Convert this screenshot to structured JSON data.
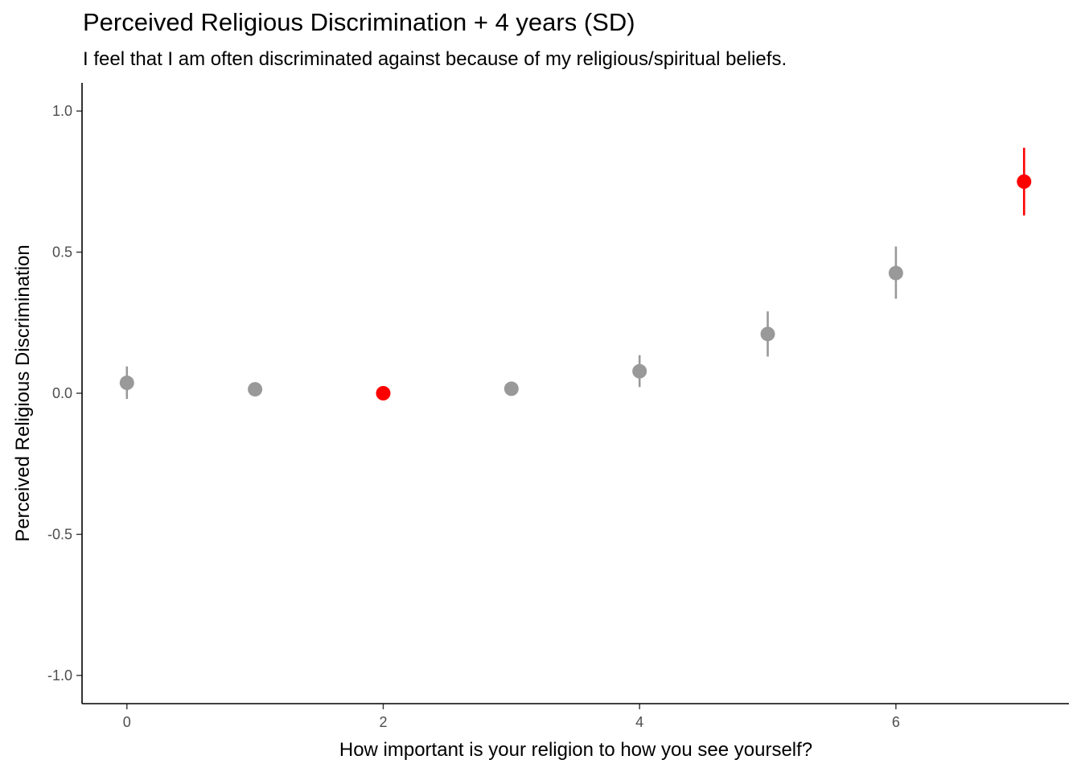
{
  "chart_data": {
    "type": "scatter",
    "title": "Perceived Religious Discrimination + 4 years (SD)",
    "subtitle": "I feel that I am often discriminated against because of my religious/spiritual beliefs.",
    "xlabel": "How important is your religion to how you see yourself?",
    "ylabel": "Perceived Religious Discrimination",
    "xlim": [
      -0.35,
      7.35
    ],
    "ylim": [
      -1.1,
      1.1
    ],
    "x_ticks": [
      0,
      2,
      4,
      6
    ],
    "y_ticks": [
      -1.0,
      -0.5,
      0.0,
      0.5,
      1.0
    ],
    "x_tick_labels": [
      "0",
      "2",
      "4",
      "6"
    ],
    "y_tick_labels": [
      "-1.0",
      "-0.5",
      "0.0",
      "0.5",
      "1.0"
    ],
    "grid": false,
    "colors": {
      "default": "#999999",
      "highlight": "#ff0000"
    },
    "points": [
      {
        "x": 0,
        "y": 0.037,
        "lo": -0.02,
        "hi": 0.095,
        "highlight": false
      },
      {
        "x": 1,
        "y": 0.014,
        "lo": 0.014,
        "hi": 0.014,
        "highlight": false
      },
      {
        "x": 2,
        "y": 0.0,
        "lo": 0.0,
        "hi": 0.0,
        "highlight": true
      },
      {
        "x": 3,
        "y": 0.016,
        "lo": 0.016,
        "hi": 0.016,
        "highlight": false
      },
      {
        "x": 4,
        "y": 0.078,
        "lo": 0.022,
        "hi": 0.135,
        "highlight": false
      },
      {
        "x": 5,
        "y": 0.21,
        "lo": 0.13,
        "hi": 0.29,
        "highlight": false
      },
      {
        "x": 6,
        "y": 0.426,
        "lo": 0.335,
        "hi": 0.52,
        "highlight": false
      },
      {
        "x": 7,
        "y": 0.75,
        "lo": 0.63,
        "hi": 0.87,
        "highlight": true
      }
    ]
  }
}
